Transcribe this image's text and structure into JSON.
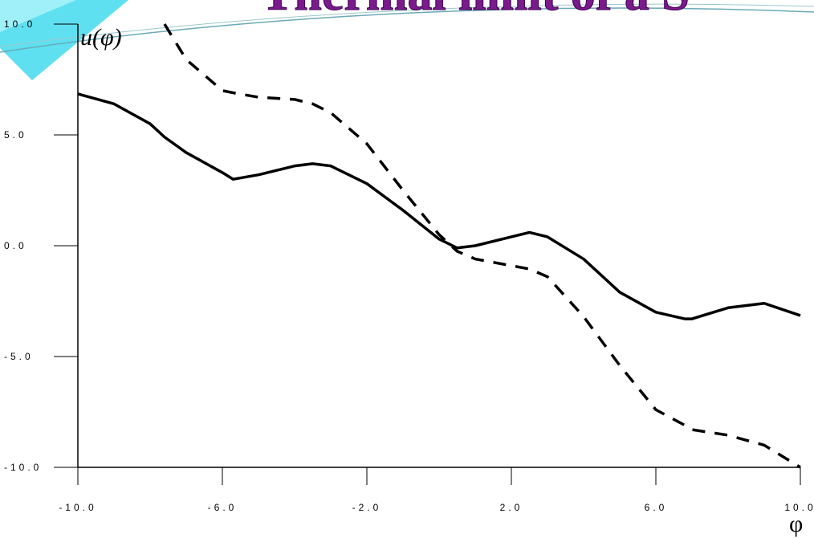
{
  "chart_data": {
    "type": "line",
    "title": "Thermal limit of a S",
    "x_label": "φ",
    "y_label": "u(φ)",
    "x": [
      -10,
      -9,
      -8,
      -7.6,
      -7,
      -6,
      -5.7,
      -5,
      -4,
      -3.5,
      -3,
      -2,
      -1,
      0,
      0.5,
      1,
      2,
      2.5,
      3,
      4,
      5,
      6,
      6.8,
      7,
      8,
      9,
      10
    ],
    "series": [
      {
        "color": "#000000",
        "dash": false,
        "values": [
          6.85,
          6.4,
          5.5,
          4.9,
          4.2,
          3.3,
          3.0,
          3.2,
          3.6,
          3.7,
          3.6,
          2.8,
          1.6,
          0.3,
          -0.1,
          0.0,
          0.4,
          0.6,
          0.4,
          -0.6,
          -2.1,
          -3.0,
          -3.3,
          -3.3,
          -2.8,
          -2.6,
          -3.15
        ]
      },
      {
        "color": "#000000",
        "dash": true,
        "values": [
          null,
          null,
          null,
          10.0,
          8.4,
          7.0,
          6.9,
          6.7,
          6.6,
          6.4,
          6.0,
          4.6,
          2.5,
          0.5,
          -0.25,
          -0.6,
          -0.9,
          -1.05,
          -1.4,
          -3.2,
          -5.4,
          -7.4,
          -8.1,
          -8.3,
          -8.55,
          -9.0,
          -10.0
        ]
      }
    ],
    "xlim": [
      -10,
      10
    ],
    "ylim": [
      -10,
      10
    ],
    "xticks": [
      {
        "value": -10,
        "label": "-10.0"
      },
      {
        "value": -6,
        "label": "-6.0"
      },
      {
        "value": -2,
        "label": "-2.0"
      },
      {
        "value": 2,
        "label": "2.0"
      },
      {
        "value": 6,
        "label": "6.0"
      },
      {
        "value": 10,
        "label": "10.0"
      }
    ],
    "yticks": [
      {
        "value": -10,
        "label": "-10.0"
      },
      {
        "value": -5,
        "label": "-5.0"
      },
      {
        "value": 0,
        "label": "0.0"
      },
      {
        "value": 5,
        "label": "5.0"
      },
      {
        "value": 10,
        "label": "10.0"
      }
    ]
  }
}
